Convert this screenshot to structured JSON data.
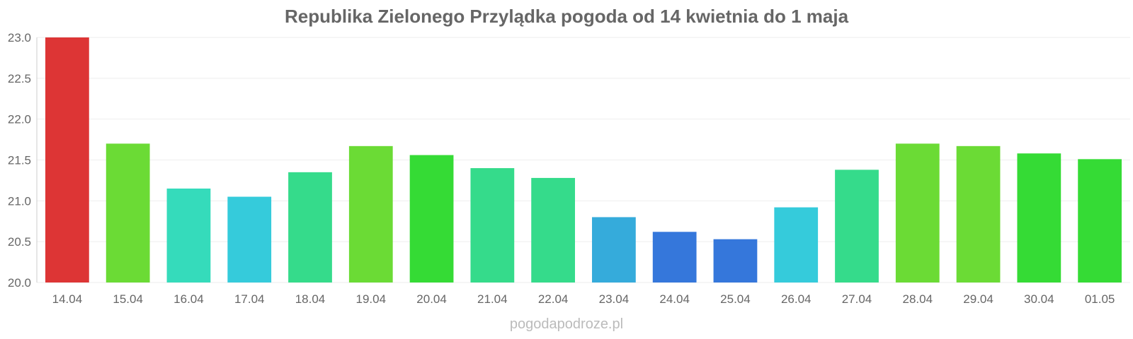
{
  "chart_data": {
    "type": "bar",
    "title": "Republika Zielonego Przylądka pogoda od 14 kwietnia do 1 maja",
    "xlabel": "",
    "ylabel": "",
    "categories": [
      "14.04",
      "15.04",
      "16.04",
      "17.04",
      "18.04",
      "19.04",
      "20.04",
      "21.04",
      "22.04",
      "23.04",
      "24.04",
      "25.04",
      "26.04",
      "27.04",
      "28.04",
      "29.04",
      "30.04",
      "01.05"
    ],
    "values": [
      23.0,
      21.7,
      21.15,
      21.05,
      21.35,
      21.67,
      21.56,
      21.4,
      21.28,
      20.8,
      20.62,
      20.53,
      20.92,
      21.38,
      21.7,
      21.67,
      21.58,
      21.51
    ],
    "colors": [
      "#dd3535",
      "#6bdb35",
      "#35dbbb",
      "#35cbdb",
      "#35db8b",
      "#6bdb35",
      "#35db35",
      "#35db8b",
      "#35db8b",
      "#35abdb",
      "#3577db",
      "#3577db",
      "#35cbdb",
      "#35db8b",
      "#6bdb35",
      "#6bdb35",
      "#35db35",
      "#35db35"
    ],
    "ylim": [
      20.0,
      23.0
    ],
    "yticks": [
      "20.0",
      "20.5",
      "21.0",
      "21.5",
      "22.0",
      "22.5",
      "23.0"
    ],
    "grid": true,
    "legend": "none"
  },
  "watermark": "pogodapodroze.pl"
}
